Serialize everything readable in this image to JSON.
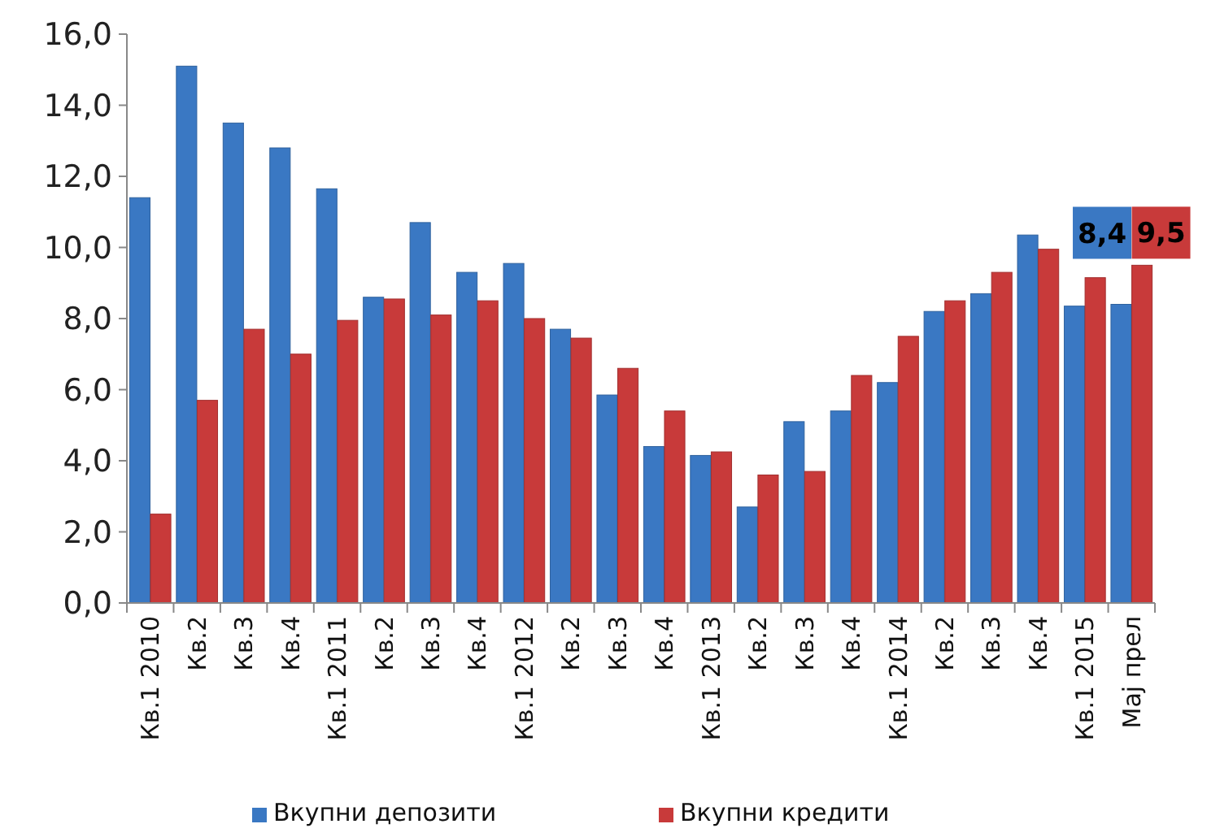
{
  "chart_data": {
    "type": "bar",
    "categories": [
      "Кв.1 2010",
      "Кв.2",
      "Кв.3",
      "Кв.4",
      "Кв.1 2011",
      "Кв.2",
      "Кв.3",
      "Кв.4",
      "Кв.1 2012",
      "Кв.2",
      "Кв.3",
      "Кв.4",
      "Кв.1 2013",
      "Кв.2",
      "Кв.3",
      "Кв.4",
      "Кв.1 2014",
      "Кв.2",
      "Кв.3",
      "Кв.4",
      "Кв.1 2015",
      "Мај прел"
    ],
    "series": [
      {
        "name": "Вкупни депозити",
        "color": "#3a78c3",
        "values": [
          11.4,
          15.1,
          13.5,
          12.8,
          11.65,
          8.6,
          10.7,
          9.3,
          9.55,
          7.7,
          5.85,
          4.4,
          4.15,
          2.7,
          5.1,
          5.4,
          6.2,
          8.2,
          8.7,
          10.35,
          8.35,
          8.4
        ],
        "value_labels": [
          null,
          null,
          null,
          null,
          null,
          null,
          null,
          null,
          null,
          null,
          null,
          null,
          null,
          null,
          null,
          null,
          null,
          null,
          null,
          null,
          null,
          "8,4"
        ]
      },
      {
        "name": "Вкупни кредити",
        "color": "#c83a3a",
        "values": [
          2.5,
          5.7,
          7.7,
          7.0,
          7.95,
          8.55,
          8.1,
          8.5,
          8.0,
          7.45,
          6.6,
          5.4,
          4.25,
          3.6,
          3.7,
          6.4,
          7.5,
          8.5,
          9.3,
          9.95,
          9.15,
          9.5
        ],
        "value_labels": [
          null,
          null,
          null,
          null,
          null,
          null,
          null,
          null,
          null,
          null,
          null,
          null,
          null,
          null,
          null,
          null,
          null,
          null,
          null,
          null,
          null,
          "9,5"
        ]
      }
    ],
    "ylim": [
      0,
      16
    ],
    "yticks": [
      {
        "value": 0,
        "label": "0,0"
      },
      {
        "value": 2,
        "label": "2,0"
      },
      {
        "value": 4,
        "label": "4,0"
      },
      {
        "value": 6,
        "label": "6,0"
      },
      {
        "value": 8,
        "label": "8,0"
      },
      {
        "value": 10,
        "label": "10,0"
      },
      {
        "value": 12,
        "label": "12,0"
      },
      {
        "value": 14,
        "label": "14,0"
      },
      {
        "value": 16,
        "label": "16,0"
      }
    ],
    "grid": false,
    "legend": "bottom"
  }
}
